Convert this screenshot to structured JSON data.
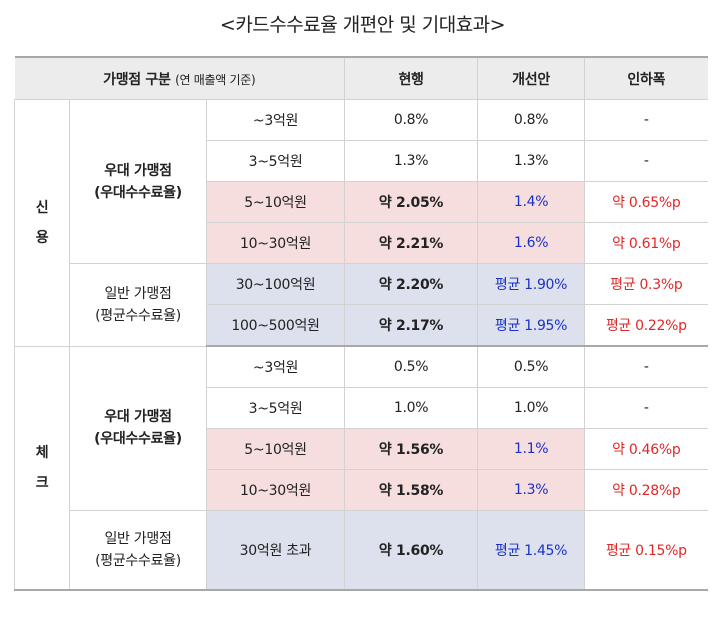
{
  "title": "<카드수수료율 개편안 및 기대효과>",
  "header": {
    "category": "가맹점 구분",
    "category_note": "(연 매출액 기준)",
    "current": "현행",
    "proposal": "개선안",
    "reduction": "인하폭"
  },
  "credit": {
    "type_line1": "신",
    "type_line2": "용",
    "preferred_line1": "우대 가맹점",
    "preferred_line2": "(우대수수료율)",
    "general_line1": "일반 가맹점",
    "general_line2": "(평균수수료율)",
    "rows": [
      {
        "sales": "~3억원",
        "current": "0.8%",
        "proposal": "0.8%",
        "reduction": "-"
      },
      {
        "sales": "3~5억원",
        "current": "1.3%",
        "proposal": "1.3%",
        "reduction": "-"
      },
      {
        "sales": "5~10억원",
        "current": "약 2.05%",
        "proposal": "1.4%",
        "reduction": "약 0.65%p"
      },
      {
        "sales": "10~30억원",
        "current": "약 2.21%",
        "proposal": "1.6%",
        "reduction": "약 0.61%p"
      },
      {
        "sales": "30~100억원",
        "current": "약 2.20%",
        "proposal": "평균 1.90%",
        "reduction": "평균 0.3%p"
      },
      {
        "sales": "100~500억원",
        "current": "약 2.17%",
        "proposal": "평균 1.95%",
        "reduction": "평균 0.22%p"
      }
    ]
  },
  "check": {
    "type_line1": "체",
    "type_line2": "크",
    "preferred_line1": "우대 가맹점",
    "preferred_line2": "(우대수수료율)",
    "general_line1": "일반 가맹점",
    "general_line2": "(평균수수료율)",
    "rows": [
      {
        "sales": "~3억원",
        "current": "0.5%",
        "proposal": "0.5%",
        "reduction": "-"
      },
      {
        "sales": "3~5억원",
        "current": "1.0%",
        "proposal": "1.0%",
        "reduction": "-"
      },
      {
        "sales": "5~10억원",
        "current": "약 1.56%",
        "proposal": "1.1%",
        "reduction": "약 0.46%p"
      },
      {
        "sales": "10~30억원",
        "current": "약 1.58%",
        "proposal": "1.3%",
        "reduction": "약 0.28%p"
      },
      {
        "sales": "30억원 초과",
        "current": "약 1.60%",
        "proposal": "평균 1.45%",
        "reduction": "평균 0.15%p"
      }
    ]
  },
  "colors": {
    "header_bg": "#ececec",
    "pink_bg": "#f7dede",
    "lavender_bg": "#dde1ee",
    "blue_text": "#1a32c8",
    "red_text": "#e02828"
  }
}
